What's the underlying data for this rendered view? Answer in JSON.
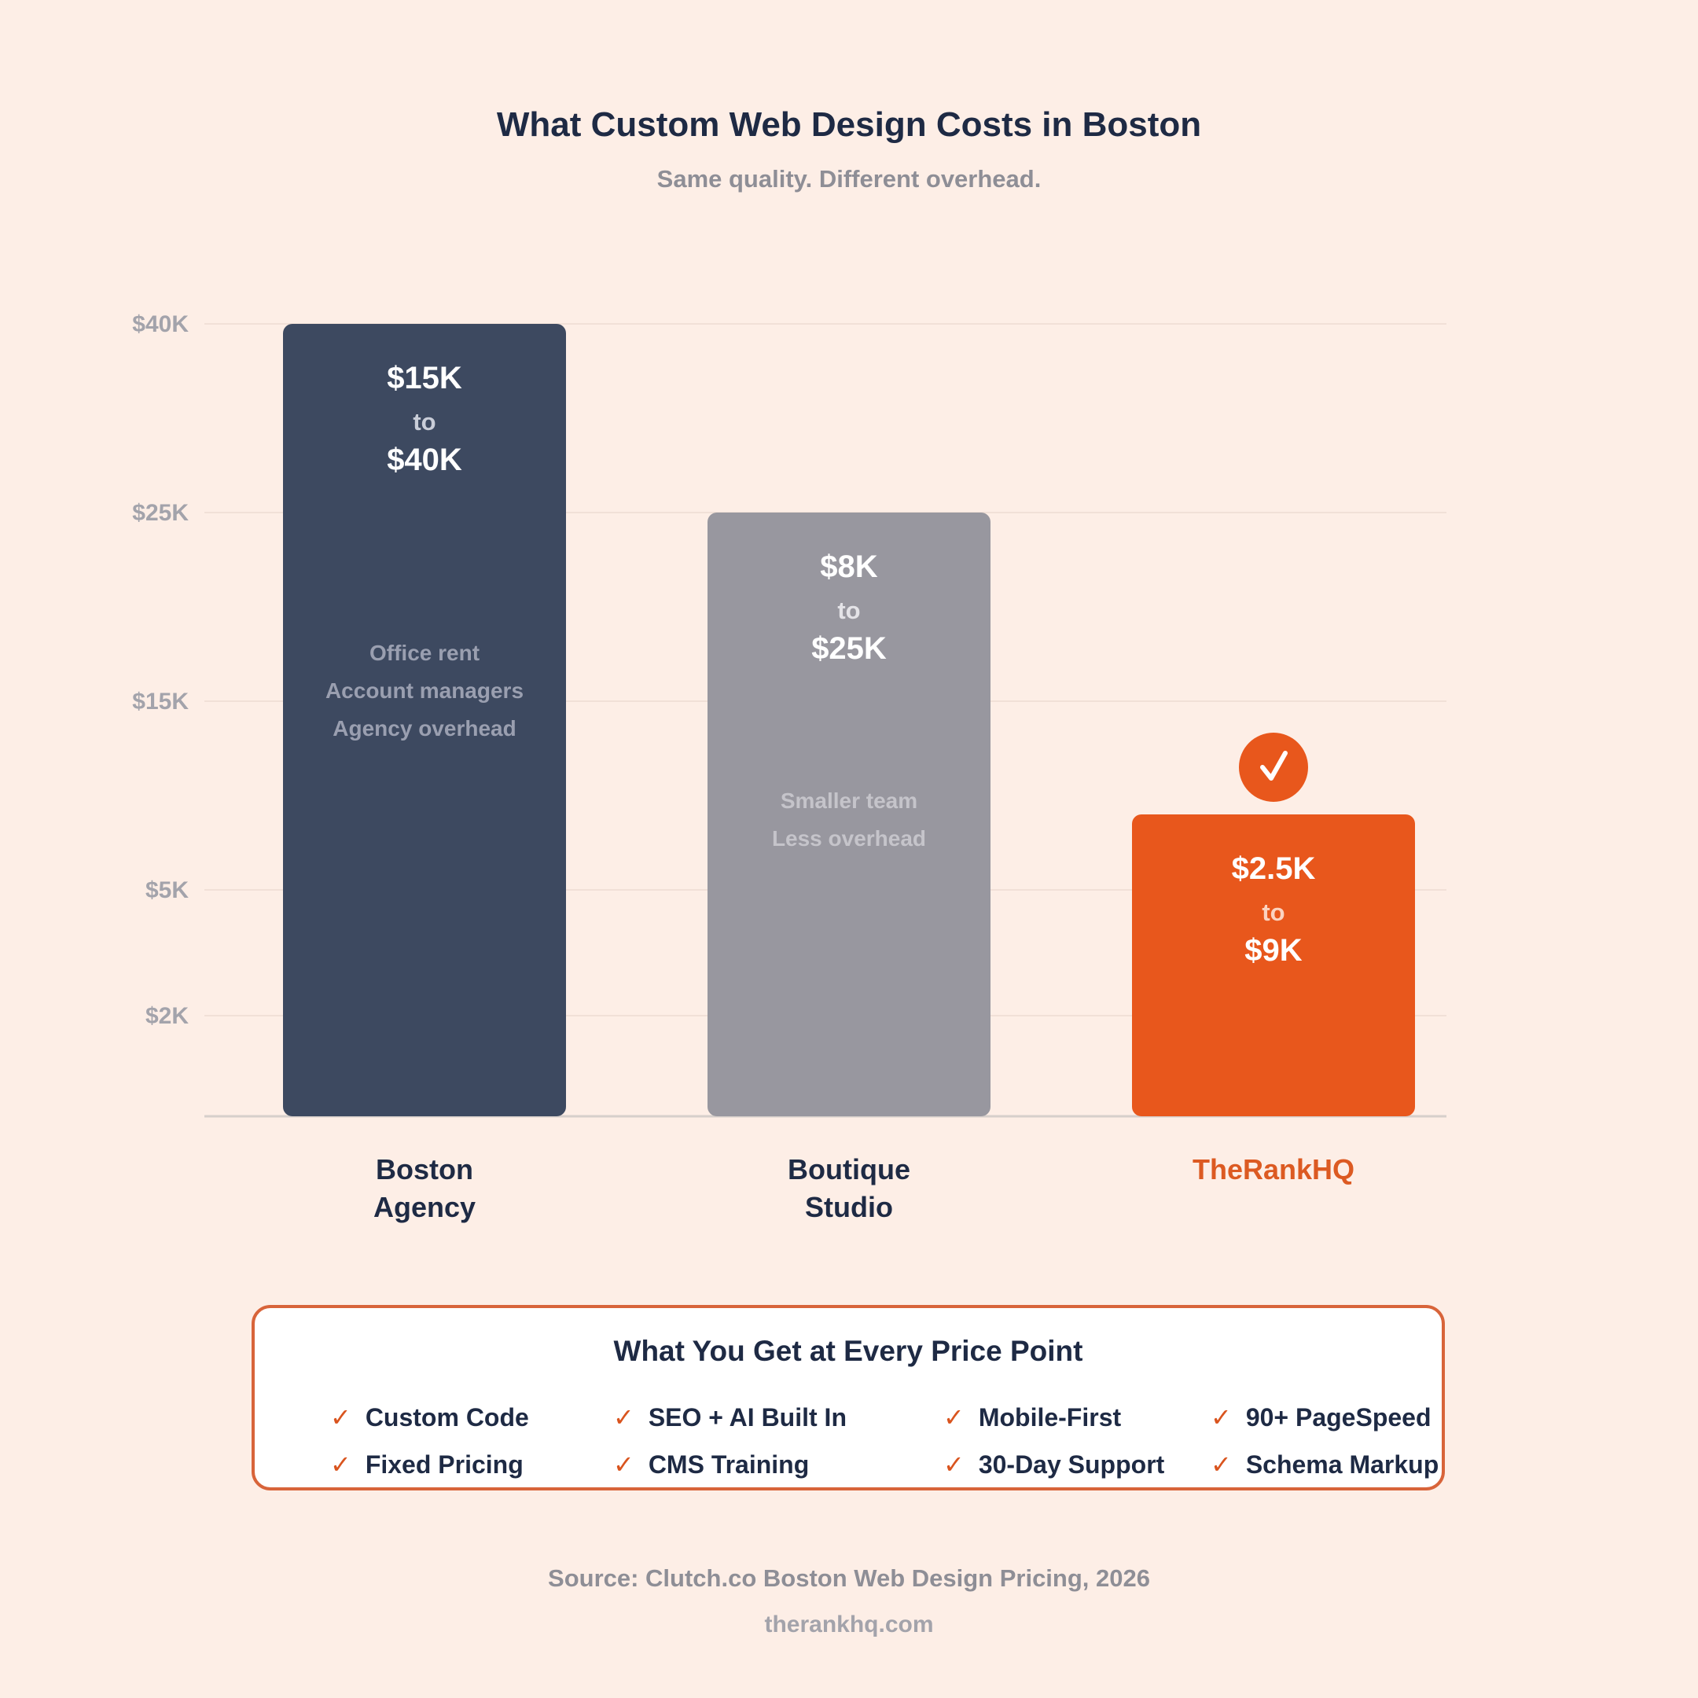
{
  "header": {
    "title": "What Custom Web Design Costs in Boston",
    "subtitle": "Same quality. Different overhead."
  },
  "chart_data": {
    "type": "bar",
    "title": "What Custom Web Design Costs in Boston",
    "subtitle": "Same quality. Different overhead.",
    "y_ticks": [
      {
        "value": 40000,
        "label": "$40K"
      },
      {
        "value": 25000,
        "label": "$25K"
      },
      {
        "value": 15000,
        "label": "$15K"
      },
      {
        "value": 5000,
        "label": "$5K"
      },
      {
        "value": 2000,
        "label": "$2K"
      }
    ],
    "bars": [
      {
        "category_lines": [
          "Boston",
          "Agency"
        ],
        "low": 15000,
        "high": 40000,
        "low_label": "$15K",
        "to_label": "to",
        "high_label": "$40K",
        "notes": [
          "Office rent",
          "Account managers",
          "Agency overhead"
        ],
        "color": "#3d4960",
        "label_color": "#1e2a44",
        "note_color": "#9a9fb0",
        "to_color": "#c9cdd8",
        "badge": false
      },
      {
        "category_lines": [
          "Boutique",
          "Studio"
        ],
        "low": 8000,
        "high": 25000,
        "low_label": "$8K",
        "to_label": "to",
        "high_label": "$25K",
        "notes": [
          "Smaller team",
          "Less overhead"
        ],
        "color": "#98979f",
        "label_color": "#1e2a44",
        "note_color": "#c5c4ca",
        "to_color": "#e4e3e7",
        "badge": false
      },
      {
        "category_lines": [
          "TheRankHQ"
        ],
        "low": 2500,
        "high": 9000,
        "low_label": "$2.5K",
        "to_label": "to",
        "high_label": "$9K",
        "notes": [],
        "color": "#e8571c",
        "label_color": "#dc5a22",
        "note_color": "#fbd3c0",
        "to_color": "#fbd3c0",
        "badge": true,
        "badge_icon": "checkmark-icon"
      }
    ],
    "grid": true
  },
  "features": {
    "title": "What You Get at Every Price Point",
    "check_icon": "✓",
    "items": [
      "Custom Code",
      "SEO + AI Built In",
      "Mobile-First",
      "90+ PageSpeed",
      "Fixed Pricing",
      "CMS Training",
      "30-Day Support",
      "Schema Markup"
    ]
  },
  "footer": {
    "source": "Source: Clutch.co Boston Web Design Pricing, 2026",
    "site": "therankhq.com"
  },
  "colors": {
    "background": "#fdeee6",
    "accent": "#e8571c",
    "navy": "#1e2a44"
  }
}
